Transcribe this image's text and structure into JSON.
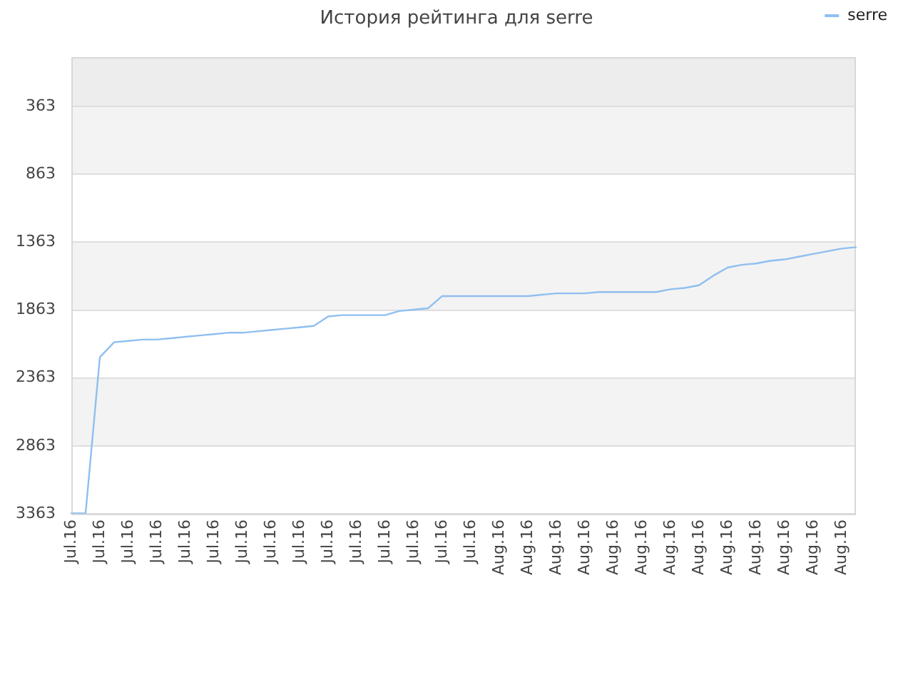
{
  "chart_data": {
    "type": "line",
    "title": "История рейтинга для serre",
    "categories": [
      "Jul.16",
      null,
      "Jul.16",
      null,
      "Jul.16",
      null,
      "Jul.16",
      null,
      "Jul.16",
      null,
      "Jul.16",
      null,
      "Jul.16",
      null,
      "Jul.16",
      null,
      "Jul.16",
      null,
      "Jul.16",
      null,
      "Jul.16",
      null,
      "Jul.16",
      null,
      "Jul.16",
      null,
      "Jul.16",
      null,
      "Jul.16",
      null,
      "Aug.16",
      null,
      "Aug.16",
      null,
      "Aug.16",
      null,
      "Aug.16",
      null,
      "Aug.16",
      null,
      "Aug.16",
      null,
      "Aug.16",
      null,
      "Aug.16",
      null,
      "Aug.16",
      null,
      "Aug.16",
      null,
      "Aug.16",
      null,
      "Aug.16",
      null,
      "Aug.16",
      null
    ],
    "series": [
      {
        "name": "serre",
        "color": "#8fbff0",
        "values": [
          3360,
          3360,
          2210,
          2100,
          2090,
          2080,
          2080,
          2070,
          2060,
          2050,
          2040,
          2030,
          2030,
          2020,
          2010,
          2000,
          1990,
          1980,
          1910,
          1900,
          1900,
          1900,
          1900,
          1870,
          1860,
          1850,
          1760,
          1760,
          1760,
          1760,
          1760,
          1760,
          1760,
          1750,
          1740,
          1740,
          1740,
          1730,
          1730,
          1730,
          1730,
          1730,
          1710,
          1700,
          1680,
          1610,
          1550,
          1530,
          1520,
          1500,
          1490,
          1470,
          1450,
          1430,
          1410,
          1400
        ]
      }
    ],
    "ylim": [
      3363,
      0
    ],
    "yticks": [
      363,
      863,
      1363,
      1863,
      2363,
      2863,
      3363
    ],
    "grid": "y",
    "legend": "top right",
    "marker": "none",
    "line_style": "solid",
    "bands": [
      {
        "axis": "y",
        "from": 0,
        "to": 363,
        "color": "#ededed"
      },
      {
        "axis": "y",
        "from": 363,
        "to": 863,
        "color": "#f3f3f3"
      },
      {
        "axis": "y",
        "from": 1363,
        "to": 1863,
        "color": "#f3f3f3"
      },
      {
        "axis": "y",
        "from": 2363,
        "to": 2863,
        "color": "#f3f3f3"
      }
    ]
  }
}
